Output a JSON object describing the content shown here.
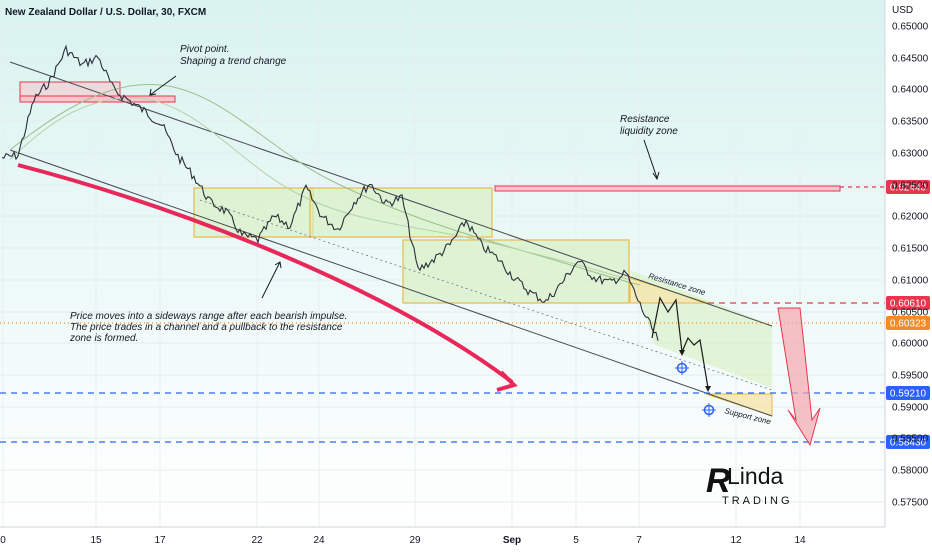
{
  "header": {
    "title": "New Zealand Dollar / U.S. Dollar, 30, FXCM"
  },
  "axis": {
    "currency": "USD"
  },
  "colors": {
    "background_top": "#d9f3f0",
    "background_bottom": "#ffffff",
    "price_line": "#2a2e39",
    "channel": "#434651",
    "range_box_fill": "#d7f0c0",
    "range_box_border": "#e8b94a",
    "resistance_zone": "#e8364f",
    "support_level": "#2962ff",
    "current_price": "#f28c28",
    "curve_arrow": "#e8275a",
    "forecast_arrow": "#f4a6ae"
  },
  "chart_data": {
    "type": "line",
    "title": "New Zealand Dollar / U.S. Dollar, 30, FXCM",
    "ylabel": "USD",
    "ylim": [
      0.5703,
      0.6538
    ],
    "y_ticks": [
      "0.65000",
      "0.64500",
      "0.64000",
      "0.63500",
      "0.63000",
      "0.62500",
      "0.62000",
      "0.61500",
      "0.61000",
      "0.60500",
      "0.60000",
      "0.59500",
      "0.59000",
      "0.58500",
      "0.58000",
      "0.57500"
    ],
    "x_ticks": [
      "0",
      "15",
      "17",
      "22",
      "24",
      "29",
      "Sep",
      "5",
      "7",
      "12",
      "14"
    ],
    "series": [
      {
        "name": "",
        "x_index": [
          0,
          2,
          4,
          6,
          8,
          10,
          12,
          14,
          16,
          18,
          20,
          22,
          24,
          26,
          28,
          30,
          32,
          34,
          36,
          38,
          40,
          42,
          44,
          46,
          48,
          50,
          52,
          54,
          56,
          58,
          60,
          62,
          64,
          66,
          68,
          70,
          72,
          74,
          76,
          78,
          80,
          82
        ],
        "values": [
          0.6288,
          0.6292,
          0.638,
          0.641,
          0.646,
          0.6435,
          0.6448,
          0.6395,
          0.6378,
          0.636,
          0.634,
          0.629,
          0.6258,
          0.6218,
          0.6203,
          0.6165,
          0.6158,
          0.6195,
          0.618,
          0.624,
          0.6195,
          0.6175,
          0.6218,
          0.6248,
          0.6215,
          0.6225,
          0.611,
          0.6127,
          0.615,
          0.6188,
          0.6148,
          0.6128,
          0.6098,
          0.6075,
          0.606,
          0.609,
          0.6125,
          0.6098,
          0.609,
          0.6105,
          0.6048,
          0.5998
        ]
      }
    ],
    "horizontal_levels": [
      {
        "label": "0.62440",
        "value": 0.6244
      },
      {
        "label": "0.60610",
        "value": 0.6061
      },
      {
        "label": "0.60323",
        "value": 0.60323
      },
      {
        "label": "0.59210",
        "value": 0.5921
      },
      {
        "label": "0.58430",
        "value": 0.5843
      }
    ],
    "annotations": [
      "Pivot point.\nShaping a trend change",
      "Resistance\nliquidity zone",
      "Price moves into a sideways range after each bearish impulse.\nThe price trades in a channel and a pullback to the resistance\nzone is formed.",
      "Resistance zone",
      "Support zone"
    ],
    "grid": true,
    "legend": "none"
  },
  "annotations": {
    "pivot": [
      "Pivot point.",
      "Shaping a trend change"
    ],
    "resistance_liquidity": [
      "Resistance",
      "liquidity zone"
    ],
    "sideways": [
      "Price moves into a sideways range after each bearish impulse.",
      "The price trades in a channel and a pullback to the resistance",
      "zone is formed."
    ],
    "resistance_zone": "Resistance zone",
    "support_zone": "Support zone"
  },
  "logo": {
    "letter": "R",
    "name": "Linda",
    "sub": "TRADING"
  }
}
